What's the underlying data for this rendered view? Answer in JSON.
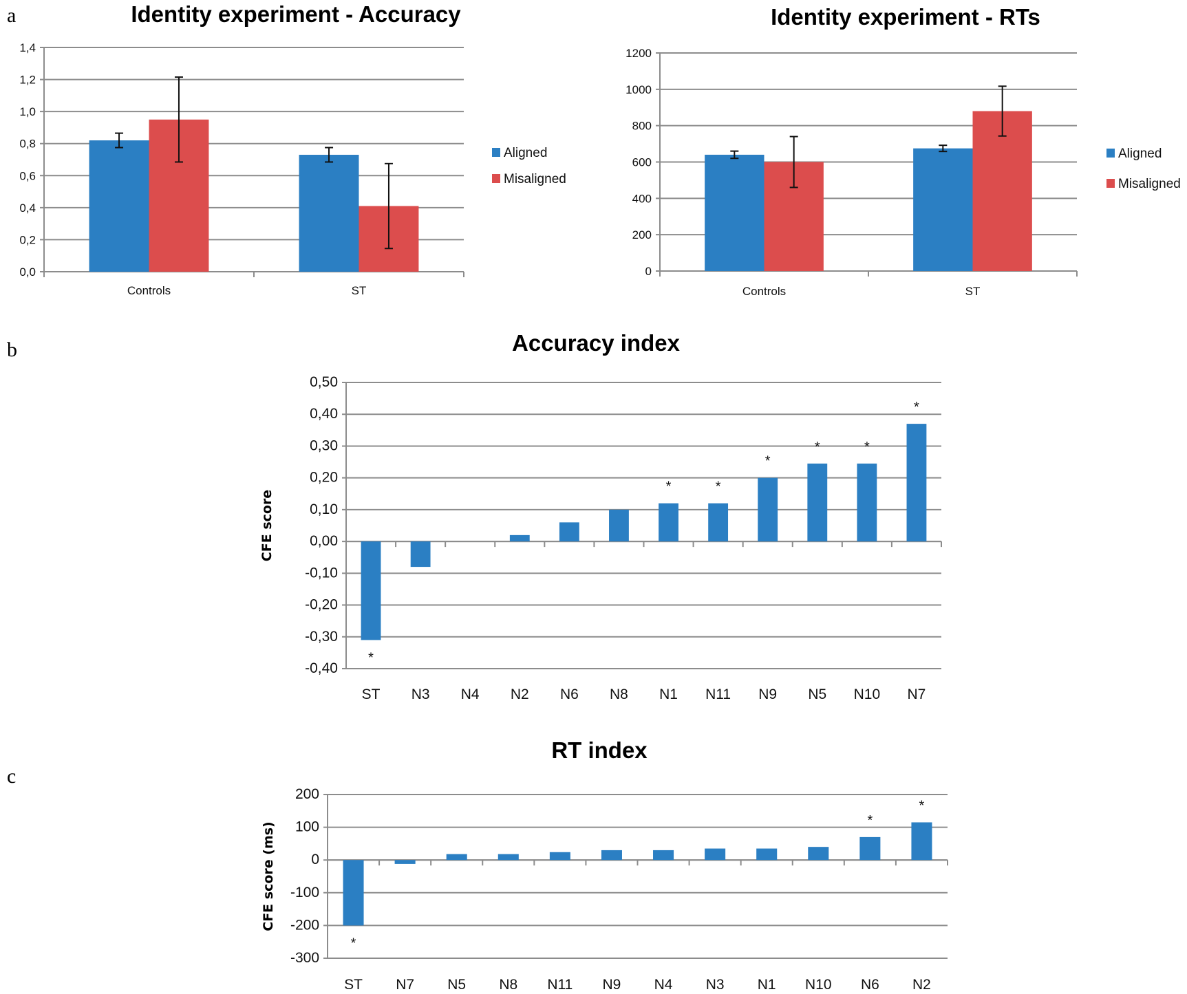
{
  "panel_labels": [
    "a",
    "b",
    "c"
  ],
  "colors": {
    "aligned": "#2b7fc3",
    "misaligned": "#dc4d4d",
    "index_bar": "#2b7fc3",
    "grid": "#8c8c8c"
  },
  "chart_data": [
    {
      "type": "bar",
      "title": "Identity experiment - Accuracy",
      "xlabel": "",
      "ylabel": "",
      "categories": [
        "Controls",
        "ST"
      ],
      "ylim": [
        0,
        1.4
      ],
      "yticks": [
        0,
        0.2,
        0.4,
        0.6,
        0.8,
        1.0,
        1.2,
        1.4
      ],
      "ytick_labels": [
        "0,0",
        "0,2",
        "0,4",
        "0,6",
        "0,8",
        "1,0",
        "1,2",
        "1,4"
      ],
      "grid": true,
      "legend": "right",
      "series": [
        {
          "name": "Aligned",
          "values": [
            0.82,
            0.73
          ],
          "error": [
            0.045,
            0.045
          ]
        },
        {
          "name": "Misaligned",
          "values": [
            0.95,
            0.41
          ],
          "error": [
            0.265,
            0.265
          ]
        }
      ]
    },
    {
      "type": "bar",
      "title": "Identity experiment - RTs",
      "xlabel": "",
      "ylabel": "",
      "categories": [
        "Controls",
        "ST"
      ],
      "ylim": [
        0,
        1200
      ],
      "yticks": [
        0,
        200,
        400,
        600,
        800,
        1000,
        1200
      ],
      "ytick_labels": [
        "0",
        "200",
        "400",
        "600",
        "800",
        "1000",
        "1200"
      ],
      "grid": true,
      "legend": "right",
      "series": [
        {
          "name": "Aligned",
          "values": [
            640,
            675
          ],
          "error": [
            20,
            17
          ]
        },
        {
          "name": "Misaligned",
          "values": [
            600,
            880
          ],
          "error": [
            140,
            137
          ]
        }
      ]
    },
    {
      "type": "bar",
      "title": "Accuracy index",
      "xlabel": "",
      "ylabel": "CFE score",
      "categories": [
        "ST",
        "N3",
        "N4",
        "N2",
        "N6",
        "N8",
        "N1",
        "N11",
        "N9",
        "N5",
        "N10",
        "N7"
      ],
      "values": [
        -0.31,
        -0.08,
        0,
        0.02,
        0.06,
        0.1,
        0.12,
        0.12,
        0.2,
        0.245,
        0.245,
        0.37
      ],
      "significant": [
        true,
        false,
        false,
        false,
        false,
        false,
        true,
        true,
        true,
        true,
        true,
        true
      ],
      "annotation": "*",
      "ylim": [
        -0.4,
        0.5
      ],
      "yticks": [
        -0.4,
        -0.3,
        -0.2,
        -0.1,
        0,
        0.1,
        0.2,
        0.3,
        0.4,
        0.5
      ],
      "ytick_labels": [
        "-0,40",
        "-0,30",
        "-0,20",
        "-0,10",
        "0,00",
        "0,10",
        "0,20",
        "0,30",
        "0,40",
        "0,50"
      ],
      "grid": true,
      "legend": "none"
    },
    {
      "type": "bar",
      "title": "RT index",
      "xlabel": "",
      "ylabel": "CFE score (ms)",
      "categories": [
        "ST",
        "N7",
        "N5",
        "N8",
        "N11",
        "N9",
        "N4",
        "N3",
        "N1",
        "N10",
        "N6",
        "N2"
      ],
      "values": [
        -200,
        -12,
        18,
        18,
        24,
        30,
        30,
        35,
        35,
        40,
        70,
        115
      ],
      "significant": [
        true,
        false,
        false,
        false,
        false,
        false,
        false,
        false,
        false,
        false,
        true,
        true
      ],
      "annotation": "*",
      "ylim": [
        -300,
        200
      ],
      "yticks": [
        -300,
        -200,
        -100,
        0,
        100,
        200
      ],
      "ytick_labels": [
        "-300",
        "-200",
        "-100",
        "0",
        "100",
        "200"
      ],
      "grid": true,
      "legend": "none"
    }
  ]
}
